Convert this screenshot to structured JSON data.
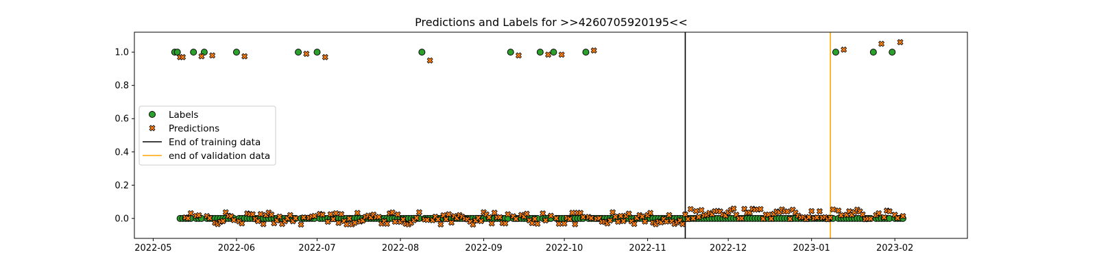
{
  "chart_data": {
    "type": "scatter",
    "title": "Predictions and Labels for >>4260705920195<<",
    "xlabel": "",
    "ylabel": "",
    "x_axis": "date",
    "xlim": [
      "2022-04-24",
      "2023-02-28"
    ],
    "ylim": [
      -0.12,
      1.12
    ],
    "x_ticks": [
      "2022-05-01",
      "2022-06-01",
      "2022-07-01",
      "2022-08-01",
      "2022-09-01",
      "2022-10-01",
      "2022-11-01",
      "2022-12-01",
      "2023-01-01",
      "2023-02-01"
    ],
    "x_tick_labels": [
      "2022-05",
      "2022-06",
      "2022-07",
      "2022-08",
      "2022-09",
      "2022-10",
      "2022-11",
      "2022-12",
      "2023-01",
      "2023-02"
    ],
    "y_ticks": [
      0.0,
      0.2,
      0.4,
      0.6,
      0.8,
      1.0
    ],
    "y_tick_labels": [
      "0.0",
      "0.2",
      "0.4",
      "0.6",
      "0.8",
      "1.0"
    ],
    "grid": false,
    "legend_placement": "center-left",
    "date_range": [
      "2022-05-09",
      "2023-02-04"
    ],
    "series": [
      {
        "name": "Labels",
        "marker": "circle",
        "color": "#2ca02c",
        "positive_dates": [
          "2022-05-09",
          "2022-05-10",
          "2022-05-16",
          "2022-05-20",
          "2022-06-01",
          "2022-06-24",
          "2022-07-01",
          "2022-08-09",
          "2022-09-11",
          "2022-09-22",
          "2022-09-27",
          "2022-10-09",
          "2023-01-10",
          "2023-01-24",
          "2023-01-31"
        ]
      },
      {
        "name": "Predictions",
        "marker": "x",
        "color": "#ff7f0e",
        "high_points": [
          {
            "x": "2022-05-11",
            "y": 0.97
          },
          {
            "x": "2022-05-12",
            "y": 0.97
          },
          {
            "x": "2022-05-19",
            "y": 0.975
          },
          {
            "x": "2022-05-23",
            "y": 0.98
          },
          {
            "x": "2022-06-04",
            "y": 0.975
          },
          {
            "x": "2022-06-27",
            "y": 0.99
          },
          {
            "x": "2022-07-04",
            "y": 0.97
          },
          {
            "x": "2022-08-12",
            "y": 0.95
          },
          {
            "x": "2022-09-14",
            "y": 0.98
          },
          {
            "x": "2022-09-25",
            "y": 0.985
          },
          {
            "x": "2022-09-30",
            "y": 0.985
          },
          {
            "x": "2022-10-12",
            "y": 1.01
          },
          {
            "x": "2023-01-13",
            "y": 1.015
          },
          {
            "x": "2023-01-27",
            "y": 1.05
          },
          {
            "x": "2023-02-03",
            "y": 1.06
          }
        ]
      },
      {
        "name": "End of training data",
        "type": "vline",
        "x": "2022-11-15",
        "color": "#000000"
      },
      {
        "name": "end of validation data",
        "type": "vline",
        "x": "2023-01-08",
        "color": "#ffa500"
      }
    ]
  }
}
